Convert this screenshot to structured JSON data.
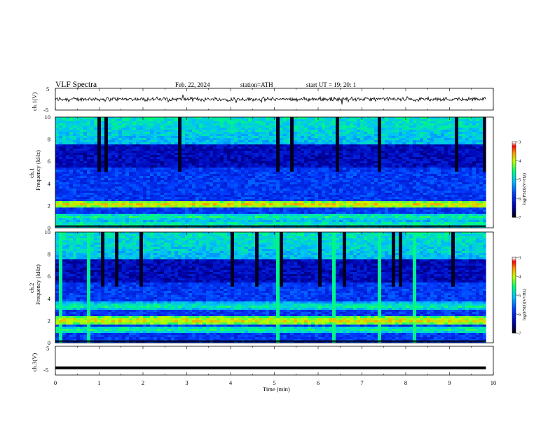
{
  "header": {
    "title": "VLF  Spectra",
    "date": "Feb. 22, 2024",
    "station": "station=ATH",
    "start": "start  UT  =    19: 20: 1"
  },
  "chart_data": [
    {
      "type": "line",
      "name": "ch1-waveform",
      "ylabel": "ch.1(V)",
      "ylim": [
        -5,
        5
      ],
      "yticks": [
        "5",
        "-5"
      ],
      "xlim": [
        0,
        10
      ],
      "approx_level": 0,
      "approx_amplitude": 0.8
    },
    {
      "type": "heatmap",
      "name": "ch1-spectrogram",
      "ylabel_channel": "ch.1",
      "ylabel": "Frequency  (kHz)",
      "ylim": [
        0,
        10
      ],
      "yticks": [
        "0",
        "2",
        "4",
        "6",
        "8",
        "10"
      ],
      "xlim": [
        0,
        9.83
      ],
      "colorbar": {
        "label": "log(PSD)(V²/Hz)",
        "range": [
          -7,
          -3
        ],
        "ticks": [
          "-3",
          "-4",
          "-5",
          "-6",
          "-7"
        ]
      },
      "strong_bands_khz": [
        2.1,
        1.0,
        0.3
      ],
      "high_level_band_khz": [
        7.5,
        10
      ]
    },
    {
      "type": "heatmap",
      "name": "ch2-spectrogram",
      "ylabel_channel": "ch.2",
      "ylabel": "Frequency  (kHz)",
      "ylim": [
        0,
        10
      ],
      "yticks": [
        "0",
        "2",
        "4",
        "6",
        "8",
        "10"
      ],
      "xlim": [
        0,
        9.83
      ],
      "colorbar": {
        "label": "log(PSD)(V²/Hz)",
        "range": [
          -7,
          -3
        ],
        "ticks": [
          "-3",
          "-4",
          "-5",
          "-6",
          "-7"
        ]
      },
      "strong_bands_khz": [
        2.0,
        3.3,
        1.2
      ],
      "high_level_band_khz": [
        7.5,
        10
      ]
    },
    {
      "type": "line",
      "name": "ch3-waveform",
      "ylabel": "ch.3(V)",
      "ylim": [
        -5,
        5
      ],
      "yticks": [
        "5",
        "-5"
      ],
      "xlim": [
        0,
        10
      ],
      "approx_level": -2.5
    }
  ],
  "xaxis": {
    "label": "Time  (min)",
    "ticks": [
      "0",
      "1",
      "2",
      "3",
      "4",
      "5",
      "6",
      "7",
      "8",
      "9",
      "10"
    ],
    "range": [
      0,
      10
    ]
  },
  "colors": {
    "scale": [
      "#000000",
      "#0000c8",
      "#0064ff",
      "#00d2ff",
      "#00ff64",
      "#c8ff00",
      "#ff8c00",
      "#ff0000",
      "#ffffff"
    ]
  }
}
